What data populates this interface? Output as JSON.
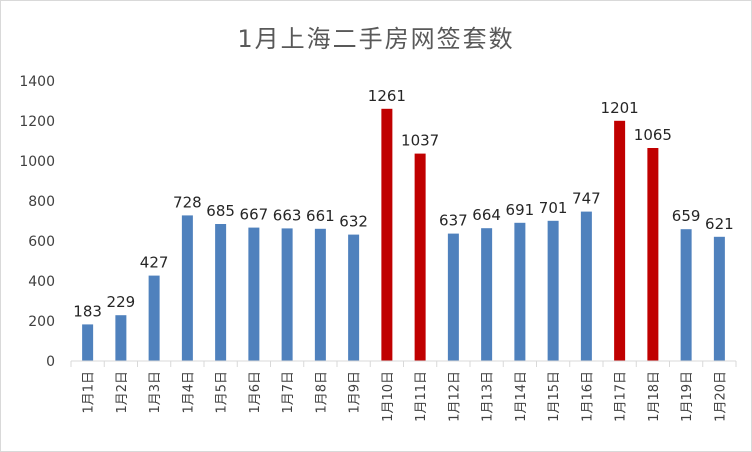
{
  "chart_data": {
    "type": "bar",
    "title": "1月上海二手房网签套数",
    "categories": [
      "1月1日",
      "1月2日",
      "1月3日",
      "1月4日",
      "1月5日",
      "1月6日",
      "1月7日",
      "1月8日",
      "1月9日",
      "1月10日",
      "1月11日",
      "1月12日",
      "1月13日",
      "1月14日",
      "1月15日",
      "1月16日",
      "1月17日",
      "1月18日",
      "1月19日",
      "1月20日"
    ],
    "values": [
      183,
      229,
      427,
      728,
      685,
      667,
      663,
      661,
      632,
      1261,
      1037,
      637,
      664,
      691,
      701,
      747,
      1201,
      1065,
      659,
      621
    ],
    "bar_colors": [
      "#4f81bd",
      "#4f81bd",
      "#4f81bd",
      "#4f81bd",
      "#4f81bd",
      "#4f81bd",
      "#4f81bd",
      "#4f81bd",
      "#4f81bd",
      "#c00000",
      "#c00000",
      "#4f81bd",
      "#4f81bd",
      "#4f81bd",
      "#4f81bd",
      "#4f81bd",
      "#c00000",
      "#c00000",
      "#4f81bd",
      "#4f81bd"
    ],
    "yticks": [
      "0",
      "200",
      "400",
      "600",
      "800",
      "1000",
      "1200",
      "1400"
    ],
    "ylim": [
      0,
      1400
    ],
    "grid": false,
    "legend": "none"
  }
}
